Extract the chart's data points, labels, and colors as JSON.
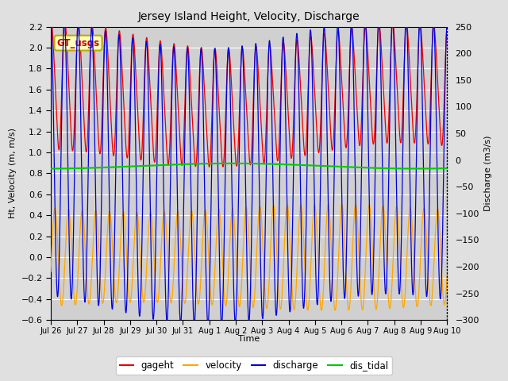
{
  "title": "Jersey Island Height, Velocity, Discharge",
  "xlabel": "Time",
  "ylabel_left": "Ht, Velocity (m, m/s)",
  "ylabel_right": "Discharge (m3/s)",
  "ylim_left": [
    -0.6,
    2.2
  ],
  "ylim_right": [
    -300,
    250
  ],
  "background_color": "#e0e0e0",
  "plot_bg_color": "#d0d0d0",
  "colors": {
    "gageht": "#ee0000",
    "velocity": "#ffa500",
    "discharge": "#0000dd",
    "dis_tidal": "#00cc00"
  },
  "gt_usgs_box": {
    "text": "GT_usgs",
    "facecolor": "#ffffbb",
    "edgecolor": "#bbaa00",
    "textcolor": "#cc0000"
  },
  "tidal_period_hours": 12.42,
  "n_days": 15,
  "yticks_left": [
    -0.6,
    -0.4,
    -0.2,
    0.0,
    0.2,
    0.4,
    0.6,
    0.8,
    1.0,
    1.2,
    1.4,
    1.6,
    1.8,
    2.0,
    2.2
  ],
  "yticks_right": [
    -300,
    -250,
    -200,
    -150,
    -100,
    -50,
    0,
    50,
    100,
    150,
    200,
    250
  ],
  "xtick_labels": [
    "Jul 26",
    "Jul 27",
    "Jul 28",
    "Jul 29",
    "Jul 30",
    "Jul 31",
    "Aug 1",
    "Aug 2",
    "Aug 3",
    "Aug 4",
    "Aug 5",
    "Aug 6",
    "Aug 7",
    "Aug 8",
    "Aug 9",
    "Aug 10"
  ],
  "legend_items": [
    "gageht",
    "velocity",
    "discharge",
    "dis_tidal"
  ]
}
